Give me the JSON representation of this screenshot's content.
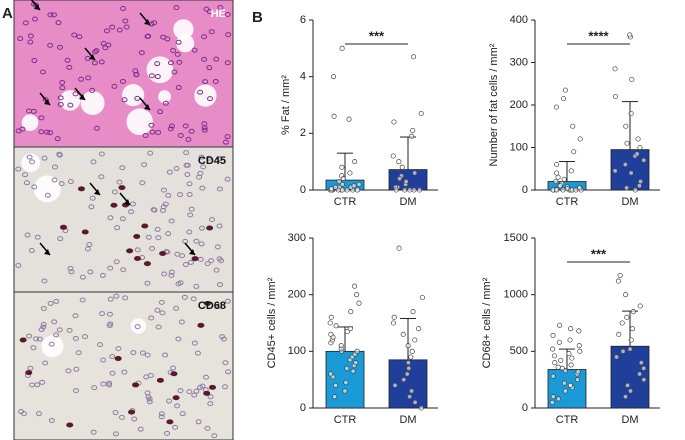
{
  "panel_labels": [
    "A",
    "B"
  ],
  "image_labels": [
    "HE",
    "CD45",
    "CD68"
  ],
  "chart_data": [
    {
      "type": "bar",
      "ylabel": "% Fat / mm²",
      "categories": [
        "CTR",
        "DM"
      ],
      "values": [
        0.35,
        0.72
      ],
      "errors": [
        0.95,
        1.15
      ],
      "colors": [
        "#1a9ad6",
        "#1f3f9a"
      ],
      "ylim": [
        0,
        6
      ],
      "yticks": [
        0,
        2,
        4,
        6
      ],
      "significance": "***",
      "points": [
        [
          0,
          0,
          0,
          0,
          0.05,
          0.1,
          0,
          0.2,
          0,
          0.3,
          0,
          0.1,
          0.5,
          0,
          0.8,
          0,
          0.15,
          1.0,
          0,
          0.4,
          0,
          2.5,
          2.6,
          4.0,
          5.0,
          0.05,
          0,
          0.6,
          0.1,
          0.2
        ],
        [
          0,
          0,
          0.1,
          0.2,
          0,
          0.5,
          0.3,
          0.8,
          0,
          1.0,
          1.2,
          0.4,
          1.9,
          2.1,
          2.4,
          2.7,
          0.1,
          0,
          0.6,
          4.7
        ]
      ]
    },
    {
      "type": "bar",
      "ylabel": "Number of fat cells / mm²",
      "categories": [
        "CTR",
        "DM"
      ],
      "values": [
        20,
        95
      ],
      "errors": [
        47,
        113
      ],
      "colors": [
        "#1a9ad6",
        "#1f3f9a"
      ],
      "ylim": [
        0,
        400
      ],
      "yticks": [
        0,
        100,
        200,
        300,
        400
      ],
      "significance": "****",
      "points": [
        [
          0,
          0,
          5,
          0,
          10,
          2,
          0,
          15,
          30,
          0,
          40,
          8,
          0,
          60,
          3,
          0,
          20,
          5,
          0,
          90,
          120,
          150,
          195,
          215,
          235,
          10,
          0,
          25,
          0,
          45
        ],
        [
          0,
          10,
          20,
          40,
          45,
          60,
          70,
          80,
          85,
          100,
          110,
          120,
          150,
          180,
          220,
          260,
          285,
          360,
          365,
          5
        ]
      ]
    },
    {
      "type": "bar",
      "ylabel": "CD45+ cells / mm²",
      "categories": [
        "CTR",
        "DM"
      ],
      "values": [
        100,
        85
      ],
      "errors": [
        43,
        73
      ],
      "colors": [
        "#1a9ad6",
        "#1f3f9a"
      ],
      "ylim": [
        0,
        300
      ],
      "yticks": [
        0,
        100,
        200,
        300
      ],
      "points": [
        [
          20,
          30,
          40,
          45,
          55,
          60,
          65,
          70,
          75,
          80,
          85,
          90,
          95,
          100,
          100,
          105,
          110,
          115,
          120,
          125,
          130,
          135,
          140,
          145,
          150,
          160,
          170,
          185,
          200,
          215
        ],
        [
          0,
          10,
          20,
          30,
          40,
          50,
          60,
          70,
          80,
          90,
          100,
          110,
          120,
          130,
          140,
          150,
          160,
          170,
          195,
          282
        ]
      ]
    },
    {
      "type": "bar",
      "ylabel": "CD68+ cells / mm²",
      "categories": [
        "CTR",
        "DM"
      ],
      "values": [
        340,
        545
      ],
      "errors": [
        180,
        310
      ],
      "colors": [
        "#1a9ad6",
        "#1f3f9a"
      ],
      "ylim": [
        0,
        1500
      ],
      "yticks": [
        0,
        500,
        1000,
        1500
      ],
      "significance": "***",
      "points": [
        [
          50,
          80,
          100,
          150,
          180,
          200,
          220,
          250,
          280,
          300,
          320,
          330,
          350,
          360,
          380,
          400,
          420,
          440,
          460,
          480,
          500,
          520,
          550,
          580,
          600,
          640,
          680,
          700,
          730,
          200
        ],
        [
          100,
          150,
          200,
          250,
          300,
          350,
          400,
          450,
          500,
          520,
          600,
          650,
          700,
          750,
          800,
          850,
          900,
          1000,
          1120,
          1170
        ]
      ]
    }
  ]
}
